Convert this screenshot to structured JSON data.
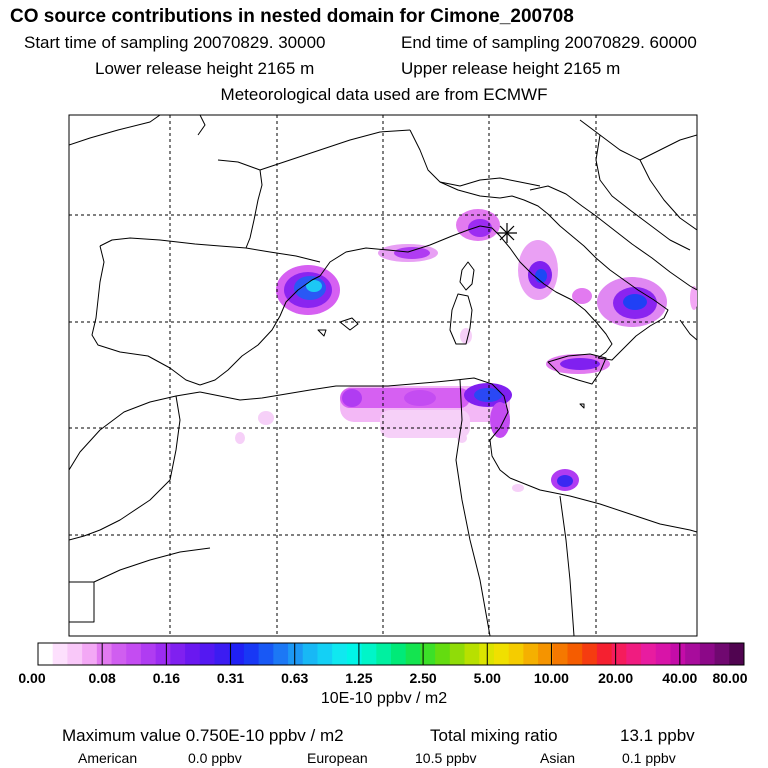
{
  "header": {
    "title": "CO  source contributions in nested domain for Cimone_200708",
    "start_time": "Start time of sampling 20070829. 30000",
    "end_time": "End time of sampling 20070829. 60000",
    "lower_release": "Lower release height 2165 m",
    "upper_release": "Upper release height 2165 m",
    "met_data": "Meteorological data used are from ECMWF"
  },
  "colorbar": {
    "labels": [
      "0.00",
      "0.08",
      "0.16",
      "0.31",
      "0.63",
      "1.25",
      "2.50",
      "5.00",
      "10.00",
      "20.00",
      "40.00",
      "80.00"
    ],
    "colors": [
      "#ffffff",
      "#fde0fd",
      "#f9c8f9",
      "#f3a8f5",
      "#e27af0",
      "#d05ef0",
      "#c44cf2",
      "#b03cf2",
      "#9c2cf2",
      "#8020f0",
      "#6a18f0",
      "#5418f2",
      "#3c1cf2",
      "#2020f5",
      "#1838f5",
      "#1858f5",
      "#1c78f5",
      "#1c98f5",
      "#18b8f5",
      "#14d0f5",
      "#10e8f0",
      "#00f5e8",
      "#00f5c8",
      "#00f0a0",
      "#00ea78",
      "#14e450",
      "#3ce028",
      "#64dc10",
      "#90dc08",
      "#b8e000",
      "#dce400",
      "#f0e000",
      "#f5cc00",
      "#f5b000",
      "#f59400",
      "#f57800",
      "#f55c00",
      "#f53c10",
      "#f52030",
      "#f51c5c",
      "#f01c80",
      "#e81ca0",
      "#d814a8",
      "#c40ca8",
      "#a80c9c",
      "#8c0888",
      "#700870",
      "#500450"
    ],
    "units": "10E-10 ppbv / m2"
  },
  "stats": {
    "max_label": "Maximum value  0.750E-10 ppbv / m2",
    "total_label": "Total mixing ratio",
    "total_value": "13.1 ppbv",
    "american_label": "American",
    "american_value": "0.0 ppbv",
    "european_label": "European",
    "european_value": "10.5 ppbv",
    "asian_label": "Asian",
    "asian_value": "0.1 ppbv"
  },
  "map": {
    "receptor_symbol": "star",
    "plumes": [
      {
        "name": "catalonia",
        "level": 0.55
      },
      {
        "name": "ligurian-coast",
        "level": 0.32
      },
      {
        "name": "gulf-of-lion",
        "level": 0.22
      },
      {
        "name": "campania",
        "level": 0.35
      },
      {
        "name": "apulia",
        "level": 0.4
      },
      {
        "name": "sicily-north",
        "level": 0.3
      },
      {
        "name": "algeria-tunisia-coast",
        "level": 0.3
      },
      {
        "name": "tunis",
        "level": 0.38
      },
      {
        "name": "gulf-of-gabes",
        "level": 0.3
      },
      {
        "name": "sardinia-east",
        "level": 0.05
      },
      {
        "name": "algerian-interior",
        "level": 0.08
      }
    ]
  }
}
